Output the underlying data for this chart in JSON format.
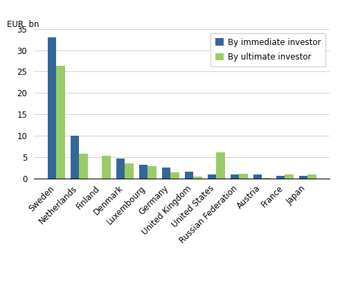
{
  "categories": [
    "Sweden",
    "Netherlands",
    "Finland",
    "Denmark",
    "Luxembourg",
    "Germany",
    "United Kingdom",
    "United States",
    "Russian Federation",
    "Austria",
    "France",
    "Japan"
  ],
  "immediate": [
    33,
    10,
    0,
    4.6,
    3.3,
    2.6,
    1.55,
    1.0,
    0.9,
    0.9,
    0.7,
    0.7
  ],
  "ultimate": [
    26.4,
    5.8,
    5.3,
    3.6,
    2.9,
    1.5,
    0.45,
    6.1,
    1.15,
    0.1,
    0.95,
    0.95
  ],
  "immediate_color": "#336699",
  "ultimate_color": "#99CC66",
  "ylabel": "EUR  bn",
  "ylim": [
    0,
    35
  ],
  "yticks": [
    0,
    5,
    10,
    15,
    20,
    25,
    30,
    35
  ],
  "legend_immediate": "By immediate investor",
  "legend_ultimate": "By ultimate investor",
  "bar_width": 0.38,
  "figsize": [
    4.91,
    4.16
  ],
  "dpi": 100
}
